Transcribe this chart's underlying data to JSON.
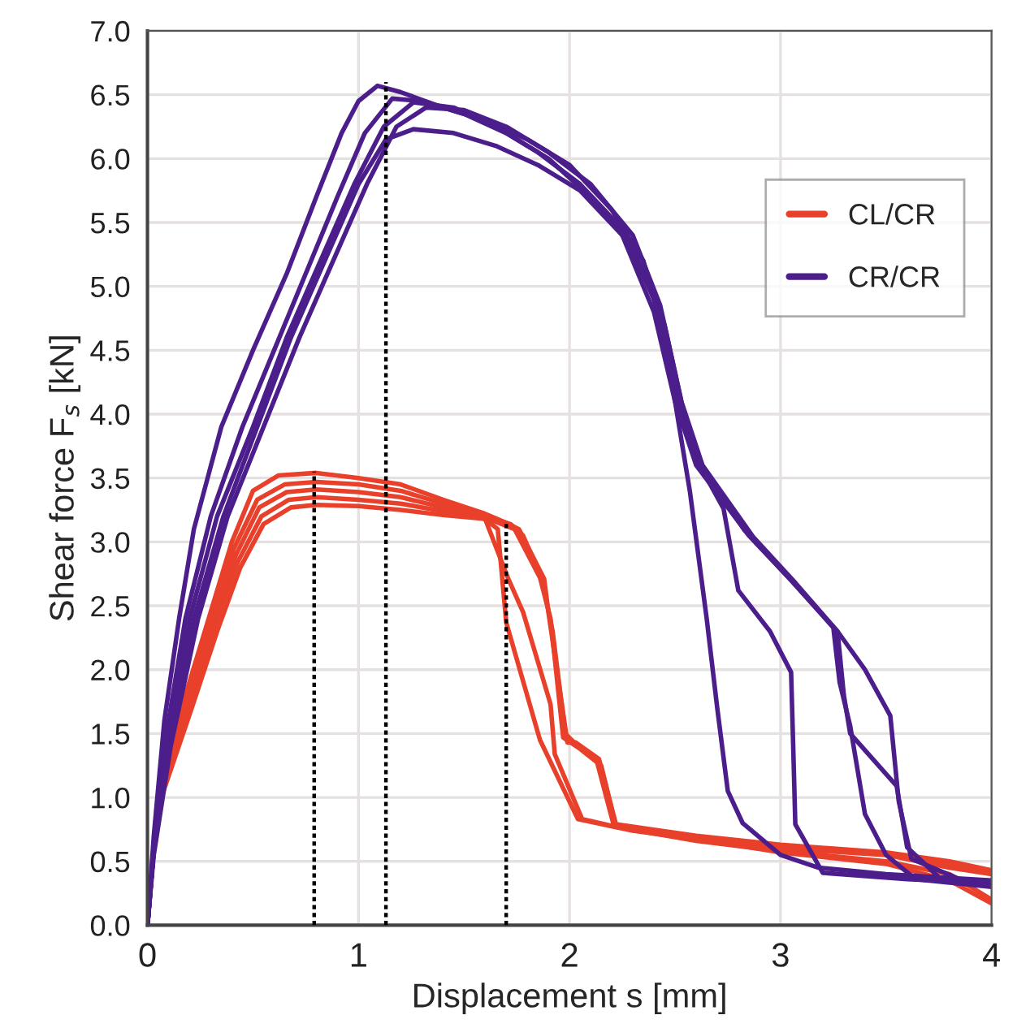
{
  "chart_data": {
    "type": "line",
    "xlabel": "Displacement s [mm]",
    "ylabel": "Shear force F$_{s}$ [kN]",
    "xlim": [
      0,
      4
    ],
    "xticks": [
      0,
      1,
      2,
      3,
      4
    ],
    "ylim": [
      0,
      7
    ],
    "yticks": [
      {
        "value": 0,
        "label": "0.0"
      },
      {
        "value": 0.5,
        "label": "0.5"
      },
      {
        "value": 1,
        "label": "1.0"
      },
      {
        "value": 1.5,
        "label": "1.5"
      },
      {
        "value": 2,
        "label": "2.0"
      },
      {
        "value": 2.5,
        "label": "2.5"
      },
      {
        "value": 3,
        "label": "3.0"
      },
      {
        "value": 3.5,
        "label": "3.5"
      },
      {
        "value": 4,
        "label": "4.0"
      },
      {
        "value": 4.5,
        "label": "4.5"
      },
      {
        "value": 5,
        "label": "5.0"
      },
      {
        "value": 5.5,
        "label": "5.5"
      },
      {
        "value": 6,
        "label": "6.0"
      },
      {
        "value": 6.5,
        "label": "6.5"
      },
      {
        "value": 7,
        "label": "7.0"
      }
    ],
    "grid": true,
    "legend": "top right",
    "series": [
      {
        "name": "CL/CR",
        "color": "#e8402a",
        "x": [
          0,
          0.03,
          0.07,
          0.18,
          0.29,
          0.4,
          0.5,
          0.62,
          0.8,
          1.0,
          1.2,
          1.4,
          1.6,
          1.7,
          1.76,
          1.88,
          1.9,
          1.99,
          2.03,
          2.14,
          2.22,
          2.6,
          3.0,
          3.5,
          3.8,
          4
        ],
        "values": [
          0,
          0.6,
          1.13,
          1.8,
          2.4,
          3.0,
          3.4,
          3.52,
          3.54,
          3.5,
          3.45,
          3.33,
          3.22,
          3.15,
          3.1,
          2.71,
          2.45,
          1.43,
          1.43,
          1.3,
          0.79,
          0.7,
          0.63,
          0.57,
          0.5,
          0.43
        ]
      },
      {
        "color": "#e8402a",
        "x": [
          0,
          0.03,
          0.07,
          0.18,
          0.3,
          0.41,
          0.52,
          0.65,
          0.8,
          1.0,
          1.2,
          1.4,
          1.6,
          1.72,
          1.78,
          1.87,
          1.92,
          1.98,
          2.04,
          2.13,
          2.21,
          2.6,
          3.0,
          3.5,
          3.8,
          4
        ],
        "values": [
          0,
          0.6,
          1.1,
          1.78,
          2.4,
          2.95,
          3.33,
          3.45,
          3.47,
          3.45,
          3.4,
          3.3,
          3.2,
          3.14,
          3.05,
          2.7,
          2.3,
          1.5,
          1.4,
          1.28,
          0.78,
          0.69,
          0.62,
          0.56,
          0.48,
          0.42
        ]
      },
      {
        "color": "#e8402a",
        "x": [
          0,
          0.03,
          0.07,
          0.19,
          0.31,
          0.42,
          0.53,
          0.66,
          0.8,
          1.0,
          1.2,
          1.4,
          1.6,
          1.74,
          1.86,
          1.91,
          1.97,
          2.05,
          2.15,
          2.22,
          2.6,
          3.0,
          3.5,
          3.8,
          4
        ],
        "values": [
          0,
          0.6,
          1.08,
          1.75,
          2.38,
          2.9,
          3.27,
          3.39,
          3.41,
          3.39,
          3.35,
          3.27,
          3.19,
          3.1,
          2.72,
          2.4,
          1.47,
          1.38,
          1.25,
          0.77,
          0.68,
          0.6,
          0.55,
          0.45,
          0.4
        ]
      },
      {
        "color": "#e8402a",
        "x": [
          0,
          0.03,
          0.07,
          0.2,
          0.32,
          0.43,
          0.54,
          0.67,
          0.8,
          1.0,
          1.2,
          1.4,
          1.6,
          1.71,
          1.78,
          1.91,
          1.93,
          2.06,
          2.22,
          2.6,
          3.0,
          3.5,
          3.8,
          4
        ],
        "values": [
          0,
          0.6,
          1.05,
          1.72,
          2.35,
          2.85,
          3.2,
          3.33,
          3.35,
          3.33,
          3.3,
          3.24,
          3.18,
          2.71,
          2.45,
          1.73,
          1.34,
          0.83,
          0.77,
          0.66,
          0.58,
          0.5,
          0.4,
          0.2
        ]
      },
      {
        "color": "#e8402a",
        "x": [
          0,
          0.03,
          0.07,
          0.21,
          0.33,
          0.44,
          0.55,
          0.68,
          0.8,
          1.0,
          1.2,
          1.4,
          1.6,
          1.66,
          1.7,
          1.86,
          2.04,
          2.3,
          2.7,
          3.0,
          3.5,
          3.8,
          4
        ],
        "values": [
          0,
          0.6,
          1.02,
          1.7,
          2.3,
          2.8,
          3.14,
          3.27,
          3.29,
          3.28,
          3.25,
          3.21,
          3.18,
          3.1,
          2.37,
          1.45,
          0.83,
          0.74,
          0.65,
          0.57,
          0.48,
          0.35,
          0.17
        ]
      },
      {
        "name": "CR/CR",
        "color": "#4b1e8c",
        "x": [
          0,
          0.03,
          0.08,
          0.15,
          0.22,
          0.35,
          0.5,
          0.66,
          0.8,
          0.92,
          1.0,
          1.09,
          1.2,
          1.4,
          1.6,
          1.8,
          2.0,
          2.2,
          2.35,
          2.45,
          2.52,
          2.57,
          2.65,
          2.7,
          2.75,
          2.82,
          3.0,
          3.18,
          3.5,
          4
        ],
        "values": [
          0,
          0.7,
          1.6,
          2.4,
          3.1,
          3.9,
          4.5,
          5.1,
          5.7,
          6.2,
          6.45,
          6.57,
          6.52,
          6.4,
          6.3,
          6.15,
          5.95,
          5.6,
          5.2,
          4.6,
          3.9,
          3.4,
          2.4,
          1.7,
          1.05,
          0.8,
          0.55,
          0.45,
          0.4,
          0.35
        ]
      },
      {
        "color": "#4b1e8c",
        "x": [
          0,
          0.03,
          0.09,
          0.18,
          0.3,
          0.45,
          0.6,
          0.75,
          0.9,
          1.03,
          1.16,
          1.3,
          1.5,
          1.7,
          1.9,
          2.1,
          2.3,
          2.45,
          2.55,
          2.65,
          2.73,
          2.8,
          2.95,
          3.05,
          3.06,
          3.07,
          3.2,
          3.6,
          4
        ],
        "values": [
          0,
          0.6,
          1.5,
          2.4,
          3.2,
          3.9,
          4.5,
          5.1,
          5.7,
          6.2,
          6.47,
          6.45,
          6.35,
          6.2,
          6.0,
          5.7,
          5.3,
          4.7,
          3.95,
          3.5,
          3.26,
          2.62,
          2.3,
          1.98,
          1.4,
          0.79,
          0.41,
          0.36,
          0.33
        ]
      },
      {
        "color": "#4b1e8c",
        "x": [
          0,
          0.03,
          0.1,
          0.2,
          0.33,
          0.5,
          0.66,
          0.82,
          0.98,
          1.12,
          1.26,
          1.45,
          1.65,
          1.85,
          2.05,
          2.25,
          2.4,
          2.5,
          2.6,
          2.83,
          3.05,
          3.25,
          3.28,
          3.33,
          3.4,
          3.5,
          3.64,
          4
        ],
        "values": [
          0,
          0.6,
          1.5,
          2.4,
          3.2,
          3.9,
          4.6,
          5.2,
          5.8,
          6.25,
          6.44,
          6.4,
          6.25,
          6.05,
          5.8,
          5.45,
          4.9,
          4.2,
          3.65,
          3.09,
          2.7,
          2.33,
          1.9,
          1.56,
          0.87,
          0.55,
          0.36,
          0.3
        ]
      },
      {
        "color": "#4b1e8c",
        "x": [
          0,
          0.03,
          0.1,
          0.22,
          0.36,
          0.52,
          0.68,
          0.84,
          1.0,
          1.13,
          1.26,
          1.45,
          1.65,
          1.85,
          2.05,
          2.25,
          2.4,
          2.5,
          2.6,
          2.85,
          3.05,
          3.27,
          3.3,
          3.33,
          3.55,
          3.6,
          3.76,
          4
        ],
        "values": [
          0,
          0.6,
          1.4,
          2.4,
          3.2,
          3.9,
          4.6,
          5.2,
          5.8,
          6.15,
          6.23,
          6.2,
          6.1,
          5.95,
          5.75,
          5.4,
          4.8,
          4.1,
          3.6,
          3.05,
          2.7,
          2.3,
          1.8,
          1.5,
          1.09,
          0.61,
          0.36,
          0.32
        ]
      },
      {
        "color": "#4b1e8c",
        "x": [
          0,
          0.03,
          0.11,
          0.24,
          0.38,
          0.55,
          0.72,
          0.88,
          1.04,
          1.18,
          1.32,
          1.5,
          1.7,
          1.9,
          2.1,
          2.3,
          2.43,
          2.53,
          2.63,
          2.87,
          3.07,
          3.27,
          3.4,
          3.52,
          3.56,
          3.62,
          3.85,
          4
        ],
        "values": [
          0,
          0.55,
          1.4,
          2.4,
          3.2,
          3.9,
          4.6,
          5.2,
          5.8,
          6.25,
          6.4,
          6.38,
          6.25,
          6.05,
          5.8,
          5.4,
          4.85,
          4.1,
          3.6,
          3.04,
          2.68,
          2.3,
          2.0,
          1.64,
          0.97,
          0.52,
          0.36,
          0.34
        ]
      },
      {
        "color": "#000000",
        "line_style": "dotted",
        "x": [
          0.79,
          0.79
        ],
        "values": [
          0,
          3.55
        ]
      },
      {
        "color": "#000000",
        "line_style": "dotted",
        "x": [
          1.13,
          1.13
        ],
        "values": [
          0,
          6.6
        ]
      },
      {
        "color": "#000000",
        "line_style": "dotted",
        "x": [
          1.7,
          1.7
        ],
        "values": [
          0,
          3.15
        ]
      }
    ]
  }
}
